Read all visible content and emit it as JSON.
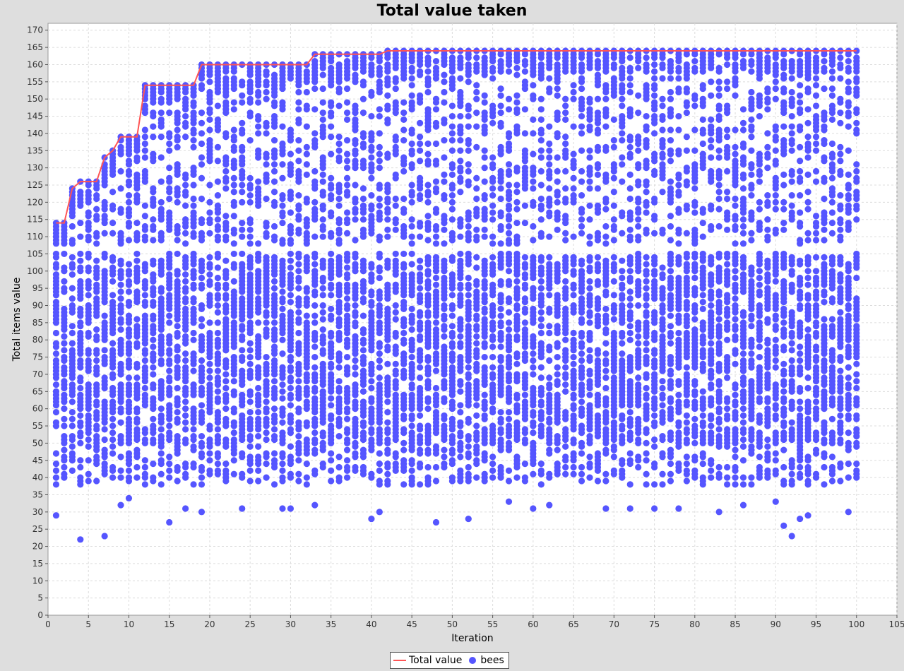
{
  "chart_data": {
    "type": "scatter",
    "title": "Total value taken",
    "xlabel": "Iteration",
    "ylabel": "Total items value",
    "xlim": [
      0,
      105
    ],
    "ylim": [
      0,
      172
    ],
    "xticks": [
      0,
      5,
      10,
      15,
      20,
      25,
      30,
      35,
      40,
      45,
      50,
      55,
      60,
      65,
      70,
      75,
      80,
      85,
      90,
      95,
      100,
      105
    ],
    "yticks": [
      0,
      5,
      10,
      15,
      20,
      25,
      30,
      35,
      40,
      45,
      50,
      55,
      60,
      65,
      70,
      75,
      80,
      85,
      90,
      95,
      100,
      105,
      110,
      115,
      120,
      125,
      130,
      135,
      140,
      145,
      150,
      155,
      160,
      165,
      170
    ],
    "grid": true,
    "legend_position": "bottom",
    "series": [
      {
        "name": "Total value",
        "kind": "line",
        "color": "#ff5555",
        "x": [
          1,
          2,
          3,
          4,
          5,
          6,
          7,
          8,
          9,
          10,
          11,
          12,
          13,
          14,
          15,
          16,
          17,
          18,
          19,
          20,
          21,
          22,
          23,
          24,
          25,
          26,
          27,
          28,
          29,
          30,
          31,
          32,
          33,
          34,
          35,
          36,
          37,
          38,
          39,
          40,
          41,
          42,
          43,
          44,
          45,
          46,
          47,
          48,
          49,
          50,
          51,
          52,
          53,
          54,
          55,
          56,
          57,
          58,
          59,
          60,
          61,
          62,
          63,
          64,
          65,
          66,
          67,
          68,
          69,
          70,
          71,
          72,
          73,
          74,
          75,
          76,
          77,
          78,
          79,
          80,
          81,
          82,
          83,
          84,
          85,
          86,
          87,
          88,
          89,
          90,
          91,
          92,
          93,
          94,
          95,
          96,
          97,
          98,
          99,
          100
        ],
        "y": [
          114,
          114,
          124,
          126,
          126,
          126,
          133,
          135,
          139,
          139,
          139,
          154,
          154,
          154,
          154,
          154,
          154,
          154,
          160,
          160,
          160,
          160,
          160,
          160,
          160,
          160,
          160,
          160,
          160,
          160,
          160,
          160,
          163,
          163,
          163,
          163,
          163,
          163,
          163,
          163,
          163,
          164,
          164,
          164,
          164,
          164,
          164,
          164,
          164,
          164,
          164,
          164,
          164,
          164,
          164,
          164,
          164,
          164,
          164,
          164,
          164,
          164,
          164,
          164,
          164,
          164,
          164,
          164,
          164,
          164,
          164,
          164,
          164,
          164,
          164,
          164,
          164,
          164,
          164,
          164,
          164,
          164,
          164,
          164,
          164,
          164,
          164,
          164,
          164,
          164,
          164,
          164,
          164,
          164,
          164,
          164,
          164,
          164,
          164,
          164
        ]
      },
      {
        "name": "bees",
        "kind": "scatter",
        "color": "#5555ff",
        "x_range": [
          1,
          100
        ],
        "y_range": [
          22,
          164
        ],
        "notable_low_points": [
          {
            "x": 1,
            "y": 29
          },
          {
            "x": 4,
            "y": 22
          },
          {
            "x": 7,
            "y": 23
          },
          {
            "x": 9,
            "y": 32
          },
          {
            "x": 10,
            "y": 34
          },
          {
            "x": 15,
            "y": 27
          },
          {
            "x": 17,
            "y": 31
          },
          {
            "x": 19,
            "y": 30
          },
          {
            "x": 24,
            "y": 31
          },
          {
            "x": 29,
            "y": 31
          },
          {
            "x": 30,
            "y": 31
          },
          {
            "x": 33,
            "y": 32
          },
          {
            "x": 40,
            "y": 28
          },
          {
            "x": 41,
            "y": 30
          },
          {
            "x": 48,
            "y": 27
          },
          {
            "x": 52,
            "y": 28
          },
          {
            "x": 57,
            "y": 33
          },
          {
            "x": 60,
            "y": 31
          },
          {
            "x": 62,
            "y": 32
          },
          {
            "x": 69,
            "y": 31
          },
          {
            "x": 72,
            "y": 31
          },
          {
            "x": 75,
            "y": 31
          },
          {
            "x": 78,
            "y": 31
          },
          {
            "x": 83,
            "y": 30
          },
          {
            "x": 86,
            "y": 32
          },
          {
            "x": 90,
            "y": 33
          },
          {
            "x": 91,
            "y": 26
          },
          {
            "x": 92,
            "y": 23
          },
          {
            "x": 93,
            "y": 28
          },
          {
            "x": 94,
            "y": 29
          },
          {
            "x": 99,
            "y": 30
          }
        ]
      }
    ]
  }
}
